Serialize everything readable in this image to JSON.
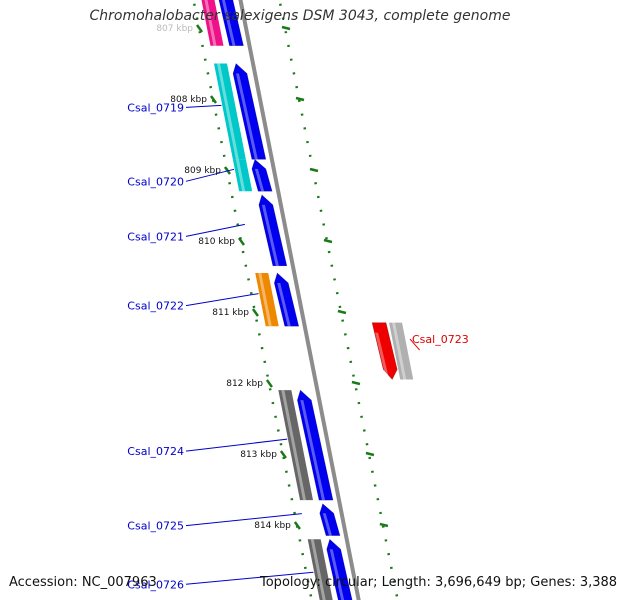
{
  "title": "Chromohalobacter salexigens DSM 3043, complete genome",
  "accession": "Accession: NC_007963",
  "summary": "Topology: circular; Length: 3,696,649 bp; Genes: 3,388",
  "colors": {
    "forward_gene": "#0000ee",
    "gene_label_left": "#0000cc",
    "gene_label_right": "#dd0000",
    "tick": "#1a7a1a",
    "backbone": "#8c8c8c"
  },
  "ticks": [
    {
      "label": "807 kbp",
      "kbp": 807
    },
    {
      "label": "808 kbp",
      "kbp": 808
    },
    {
      "label": "809 kbp",
      "kbp": 809
    },
    {
      "label": "810 kbp",
      "kbp": 810
    },
    {
      "label": "811 kbp",
      "kbp": 811
    },
    {
      "label": "812 kbp",
      "kbp": 812
    },
    {
      "label": "813 kbp",
      "kbp": 813
    },
    {
      "label": "814 kbp",
      "kbp": 814
    }
  ],
  "genes": [
    {
      "name": "",
      "start_kbp": 806.3,
      "end_kbp": 807.25,
      "strand": "+",
      "color": "#0000ee",
      "cog_color": "#ee1188"
    },
    {
      "name": "Csal_0719",
      "start_kbp": 807.5,
      "end_kbp": 808.85,
      "strand": "+",
      "color": "#0000ee",
      "cog_color": "#00c8c8"
    },
    {
      "name": "Csal_0720",
      "start_kbp": 808.85,
      "end_kbp": 809.3,
      "strand": "+",
      "color": "#0000ee",
      "cog_color": "#00c8c8"
    },
    {
      "name": "Csal_0721",
      "start_kbp": 809.35,
      "end_kbp": 810.35,
      "strand": "+",
      "color": "#0000ee",
      "cog_color": ""
    },
    {
      "name": "Csal_0722",
      "start_kbp": 810.45,
      "end_kbp": 811.2,
      "strand": "+",
      "color": "#0000ee",
      "cog_color": "#ee8800"
    },
    {
      "name": "Csal_0723",
      "start_kbp": 811.15,
      "end_kbp": 811.95,
      "strand": "-",
      "color": "#ee0000",
      "cog_color": "#b0b0b0"
    },
    {
      "name": "Csal_0724",
      "start_kbp": 812.1,
      "end_kbp": 813.65,
      "strand": "+",
      "color": "#0000ee",
      "cog_color": "#666666"
    },
    {
      "name": "Csal_0725",
      "start_kbp": 813.7,
      "end_kbp": 814.15,
      "strand": "+",
      "color": "#0000ee",
      "cog_color": ""
    },
    {
      "name": "Csal_0726",
      "start_kbp": 814.2,
      "end_kbp": 815.3,
      "strand": "+",
      "color": "#0000ee",
      "cog_color": "#666666"
    }
  ]
}
